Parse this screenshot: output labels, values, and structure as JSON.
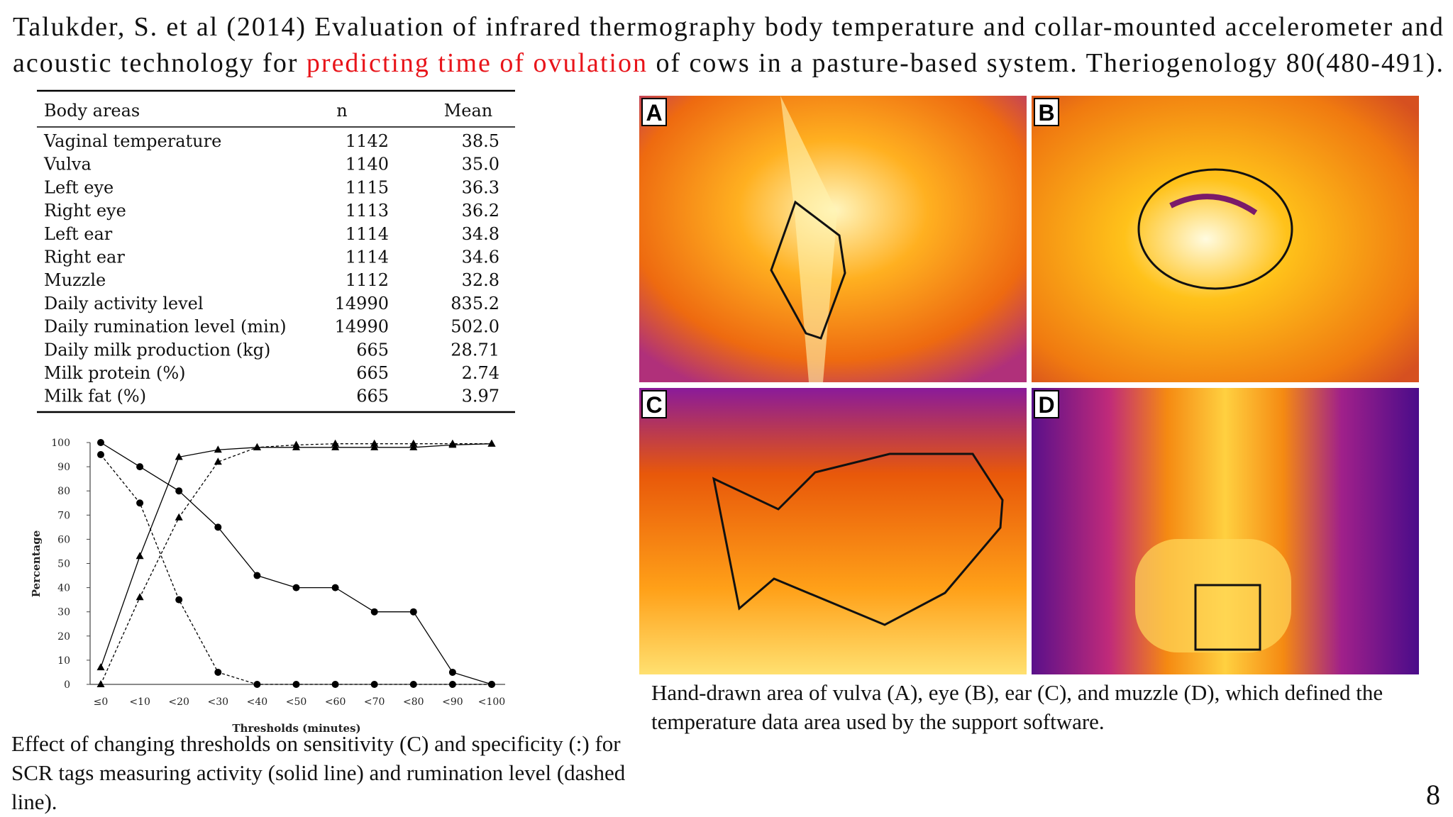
{
  "title": {
    "line1": "Talukder, S. et al (2014) Evaluation of infrared thermography body temperature and collar-mounted accelerometer and",
    "line2_before": "acoustic technology for ",
    "highlight": "predicting time of ovulation",
    "line2_after": " of cows in a pasture-based system. Theriogenology  80(480-491).",
    "highlight_color": "#e8141a"
  },
  "table": {
    "header": [
      "Body areas",
      "n",
      "Mean"
    ],
    "rows": [
      [
        "Vaginal temperature",
        "1142",
        "38.5"
      ],
      [
        "Vulva",
        "1140",
        "35.0"
      ],
      [
        "Left eye",
        "1115",
        "36.3"
      ],
      [
        "Right eye",
        "1113",
        "36.2"
      ],
      [
        "Left ear",
        "1114",
        "34.8"
      ],
      [
        "Right ear",
        "1114",
        "34.6"
      ],
      [
        "Muzzle",
        "1112",
        "32.8"
      ],
      [
        "Daily activity level",
        "14990",
        "835.2"
      ],
      [
        "Daily rumination level (min)",
        "14990",
        "502.0"
      ],
      [
        "Daily milk production (kg)",
        "665",
        "28.71"
      ],
      [
        "Milk protein (%)",
        "665",
        "2.74"
      ],
      [
        "Milk fat (%)",
        "665",
        "3.97"
      ]
    ]
  },
  "chart_data": {
    "type": "line",
    "xlabel": "Thresholds (minutes)",
    "ylabel": "Percentage",
    "categories": [
      "≤0",
      "<10",
      "<20",
      "<30",
      "<40",
      "<50",
      "<60",
      "<70",
      "<80",
      "<90",
      "<100"
    ],
    "ylim": [
      0,
      100
    ],
    "yticks": [
      0,
      10,
      20,
      30,
      40,
      50,
      60,
      70,
      80,
      90,
      100
    ],
    "series": [
      {
        "color": "#000000",
        "line_style": "solid",
        "marker": "triangle",
        "values": [
          7,
          53,
          94,
          97,
          98,
          98,
          98,
          98,
          98,
          99,
          99.5
        ]
      },
      {
        "color": "#000000",
        "line_style": "solid",
        "marker": "circle",
        "values": [
          100,
          90,
          80,
          65,
          45,
          40,
          40,
          30,
          30,
          5,
          0
        ]
      },
      {
        "color": "#000000",
        "line_style": "dashed",
        "marker": "triangle",
        "values": [
          0,
          36,
          69,
          92,
          98,
          99,
          99.5,
          99.5,
          99.5,
          99.5,
          99.5
        ]
      },
      {
        "color": "#000000",
        "line_style": "dashed",
        "marker": "circle",
        "values": [
          95,
          75,
          35,
          5,
          0,
          0,
          0,
          0,
          0,
          0,
          0
        ]
      }
    ]
  },
  "chart_caption": "Effect of changing thresholds on sensitivity (C) and specificity (:) for SCR tags measuring activity (solid line) and rumination level (dashed line).",
  "images": [
    {
      "label": "A"
    },
    {
      "label": "B"
    },
    {
      "label": "C"
    },
    {
      "label": "D"
    }
  ],
  "image_caption": "Hand-drawn area of vulva (A), eye (B), ear (C), and muzzle (D), which defined the temperature data area used by the support software.",
  "page_number": "8"
}
